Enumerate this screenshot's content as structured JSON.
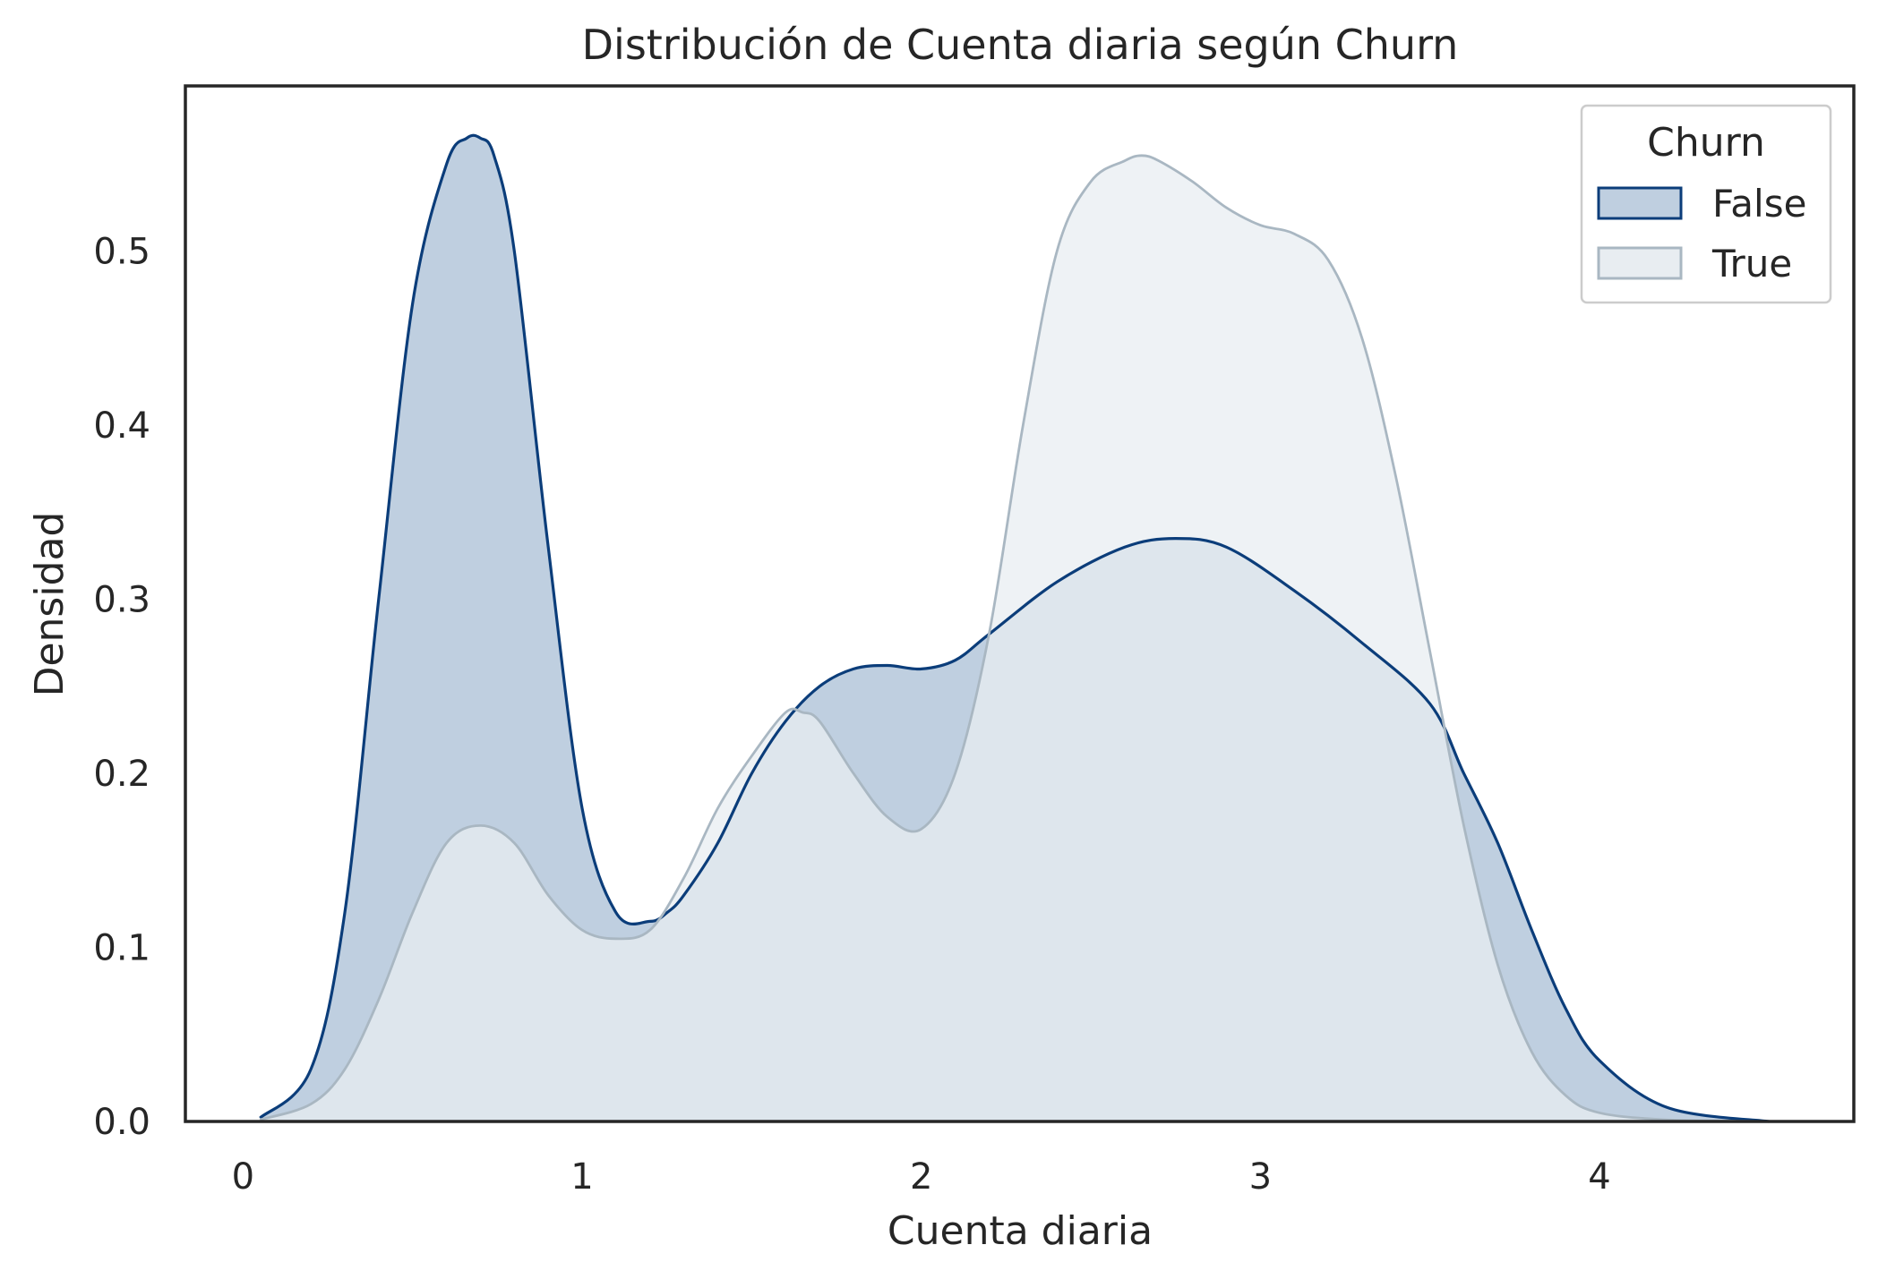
{
  "chart_data": {
    "type": "area",
    "title": "Distribución de Cuenta diaria según Churn",
    "xlabel": "Cuenta diaria",
    "ylabel": "Densidad",
    "xlim": [
      -0.17,
      4.75
    ],
    "ylim": [
      0.0,
      0.595
    ],
    "xticks": [
      "0",
      "1",
      "2",
      "3",
      "4"
    ],
    "xtick_values": [
      0,
      1,
      2,
      3,
      4
    ],
    "yticks": [
      "0.0",
      "0.1",
      "0.2",
      "0.3",
      "0.4",
      "0.5"
    ],
    "ytick_values": [
      0.0,
      0.1,
      0.2,
      0.3,
      0.4,
      0.5
    ],
    "grid": false,
    "legend": {
      "title": "Churn",
      "placement": "top-right"
    },
    "series": [
      {
        "name": "False",
        "color": "#0b3d7a",
        "fill": "#bfcfe0",
        "x": [
          0.05,
          0.2,
          0.3,
          0.4,
          0.5,
          0.6,
          0.66,
          0.7,
          0.74,
          0.8,
          0.9,
          1.0,
          1.1,
          1.2,
          1.25,
          1.3,
          1.4,
          1.5,
          1.6,
          1.7,
          1.8,
          1.9,
          2.0,
          2.1,
          2.2,
          2.4,
          2.6,
          2.75,
          2.9,
          3.1,
          3.3,
          3.5,
          3.6,
          3.7,
          3.8,
          3.9,
          4.0,
          4.2,
          4.5
        ],
        "y": [
          0.002,
          0.03,
          0.12,
          0.3,
          0.47,
          0.55,
          0.565,
          0.565,
          0.555,
          0.5,
          0.33,
          0.18,
          0.12,
          0.115,
          0.12,
          0.13,
          0.16,
          0.2,
          0.23,
          0.25,
          0.26,
          0.262,
          0.26,
          0.265,
          0.28,
          0.31,
          0.33,
          0.335,
          0.33,
          0.305,
          0.275,
          0.24,
          0.2,
          0.16,
          0.11,
          0.065,
          0.035,
          0.008,
          0.0
        ]
      },
      {
        "name": "True",
        "color": "#a9b7c2",
        "fill": "#e8edf1",
        "x": [
          0.05,
          0.2,
          0.3,
          0.4,
          0.5,
          0.6,
          0.7,
          0.8,
          0.9,
          1.0,
          1.1,
          1.2,
          1.3,
          1.4,
          1.5,
          1.6,
          1.65,
          1.7,
          1.8,
          1.9,
          2.0,
          2.1,
          2.2,
          2.3,
          2.4,
          2.5,
          2.6,
          2.65,
          2.7,
          2.8,
          2.9,
          3.0,
          3.1,
          3.2,
          3.3,
          3.4,
          3.5,
          3.6,
          3.7,
          3.8,
          3.9,
          4.0,
          4.2,
          4.5
        ],
        "y": [
          0.001,
          0.01,
          0.03,
          0.07,
          0.12,
          0.16,
          0.17,
          0.16,
          0.13,
          0.11,
          0.105,
          0.11,
          0.14,
          0.18,
          0.21,
          0.235,
          0.235,
          0.23,
          0.2,
          0.175,
          0.168,
          0.2,
          0.28,
          0.4,
          0.5,
          0.54,
          0.552,
          0.555,
          0.552,
          0.54,
          0.525,
          0.515,
          0.51,
          0.495,
          0.45,
          0.37,
          0.27,
          0.17,
          0.09,
          0.04,
          0.015,
          0.005,
          0.001,
          0.0
        ]
      }
    ]
  }
}
